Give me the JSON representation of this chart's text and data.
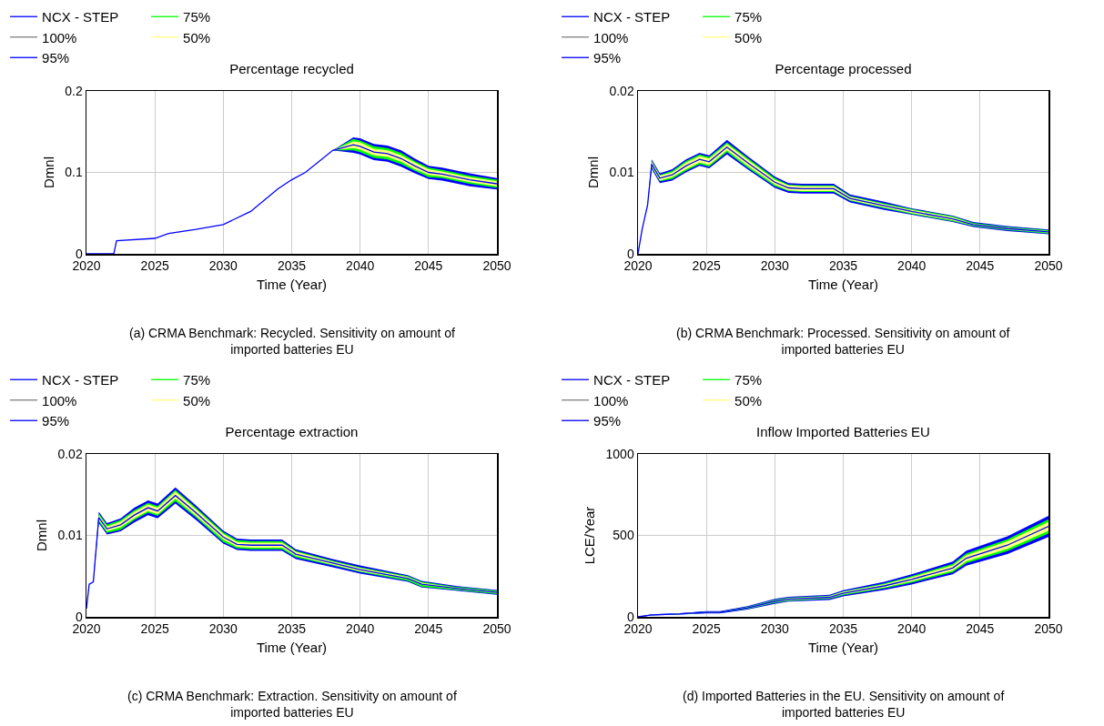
{
  "chart_data": [
    {
      "type": "line",
      "title": "Percentage recycled",
      "xlabel": "Time (Year)",
      "ylabel": "Dmnl",
      "annotations": [
        "(a) CRMA Benchmark: Recycled. Sensitivity on amount of imported batteries EU"
      ],
      "x": [
        2020,
        2022,
        2022.2,
        2025,
        2026,
        2028,
        2030,
        2032,
        2034,
        2035,
        2036,
        2038,
        2039.5,
        2040,
        2041,
        2042,
        2043,
        2044,
        2045,
        2046,
        2048,
        2050
      ],
      "xlim": [
        2020,
        2050
      ],
      "xticks": [
        2020,
        2025,
        2030,
        2035,
        2040,
        2045,
        2050
      ],
      "ylim": [
        0,
        0.2
      ],
      "yticks": [
        0,
        0.1,
        0.2
      ],
      "grid": true,
      "legend": "top left",
      "series": [
        {
          "name": "NCX - STEP",
          "color": "#0000ff",
          "values": [
            0,
            0,
            0.016,
            0.019,
            0.025,
            0.03,
            0.036,
            0.052,
            0.08,
            0.091,
            0.1,
            0.127,
            0.134,
            0.132,
            0.125,
            0.123,
            0.117,
            0.108,
            0.1,
            0.098,
            0.091,
            0.086
          ]
        },
        {
          "name": "50%",
          "color": "#ffff80",
          "x": [
            2038,
            2039.5,
            2040,
            2041,
            2042,
            2043,
            2044,
            2045,
            2046,
            2048,
            2050
          ],
          "values": [
            null,
            null,
            null,
            null,
            null,
            null,
            null,
            null,
            null,
            null,
            null
          ],
          "upper": [
            0.127,
            0.138,
            0.137,
            0.129,
            0.127,
            0.121,
            0.112,
            0.104,
            0.101,
            0.094,
            0.089
          ],
          "lower": [
            0.127,
            0.13,
            0.128,
            0.121,
            0.119,
            0.113,
            0.104,
            0.097,
            0.095,
            0.088,
            0.083
          ]
        },
        {
          "name": "75%",
          "color": "#00ff00",
          "x": [
            2038,
            2039.5,
            2040,
            2041,
            2042,
            2043,
            2044,
            2045,
            2046,
            2048,
            2050
          ],
          "values": [
            null,
            null,
            null,
            null,
            null,
            null,
            null,
            null,
            null,
            null,
            null
          ],
          "upper": [
            0.127,
            0.141,
            0.139,
            0.132,
            0.13,
            0.124,
            0.114,
            0.106,
            0.103,
            0.096,
            0.091
          ],
          "lower": [
            0.127,
            0.127,
            0.125,
            0.118,
            0.116,
            0.11,
            0.102,
            0.094,
            0.093,
            0.086,
            0.081
          ]
        },
        {
          "name": "95%",
          "color": "#0000ff",
          "x": [
            2038,
            2039.5,
            2040,
            2041,
            2042,
            2043,
            2044,
            2045,
            2046,
            2048,
            2050
          ],
          "values": [
            null,
            null,
            null,
            null,
            null,
            null,
            null,
            null,
            null,
            null,
            null
          ],
          "upper": [
            0.127,
            0.143,
            0.142,
            0.135,
            0.133,
            0.127,
            0.117,
            0.108,
            0.106,
            0.099,
            0.093
          ],
          "lower": [
            0.127,
            0.124,
            0.122,
            0.115,
            0.113,
            0.107,
            0.099,
            0.092,
            0.09,
            0.083,
            0.079
          ]
        },
        {
          "name": "100%",
          "color": "#808080",
          "values": [
            null,
            null,
            null,
            null,
            null,
            null,
            null,
            null,
            null,
            null,
            null,
            null,
            null,
            null,
            null,
            null,
            null,
            null,
            null,
            null,
            null,
            null
          ],
          "upper": [
            null,
            null,
            null,
            null,
            null,
            null,
            null,
            null,
            null,
            null,
            null,
            null,
            null,
            null,
            null,
            null,
            null,
            null,
            null,
            null,
            null,
            null
          ],
          "lower": [
            null,
            null,
            null,
            null,
            null,
            null,
            null,
            null,
            null,
            null,
            null,
            null,
            null,
            null,
            null,
            null,
            null,
            null,
            null,
            null,
            null,
            null
          ]
        }
      ]
    },
    {
      "type": "line",
      "title": "Percentage processed",
      "xlabel": "Time (Year)",
      "ylabel": "Dmnl",
      "annotations": [
        "(b) CRMA Benchmark: Processed. Sensitivity on amount of imported batteries EU"
      ],
      "x": [
        2020,
        2020.3,
        2020.7,
        2021,
        2021.6,
        2022.5,
        2023.5,
        2024.5,
        2025.2,
        2026.5,
        2028,
        2030,
        2031,
        2032,
        2034.3,
        2035.5,
        2038,
        2040,
        2043,
        2044.5,
        2047,
        2050
      ],
      "xlim": [
        2020,
        2050
      ],
      "xticks": [
        2020,
        2025,
        2030,
        2035,
        2040,
        2045,
        2050
      ],
      "ylim": [
        0,
        0.02
      ],
      "yticks": [
        0,
        0.01,
        0.02
      ],
      "grid": true,
      "legend": "top left",
      "series": [
        {
          "name": "NCX - STEP",
          "color": "#0000ff",
          "values": [
            0,
            0.003,
            0.006,
            0.011,
            0.0093,
            0.0097,
            0.0108,
            0.0116,
            0.0113,
            0.0131,
            0.0112,
            0.0088,
            0.0081,
            0.008,
            0.008,
            0.0068,
            0.0059,
            0.0052,
            0.0043,
            0.0036,
            0.0031,
            0.0027
          ]
        },
        {
          "name": "50%",
          "color": "#ffff80",
          "x": [
            2020.7,
            2021,
            2021.6,
            2022.5,
            2023.5,
            2024.5,
            2025.2,
            2026.5,
            2028,
            2030,
            2031,
            2032,
            2034.3,
            2035.5,
            2038,
            2040,
            2043,
            2044.5,
            2047,
            2050
          ],
          "values": [
            null,
            null,
            null,
            null,
            null,
            null,
            null,
            null,
            null,
            null,
            null,
            null,
            null,
            null,
            null,
            null,
            null,
            null,
            null,
            null
          ],
          "upper": [
            0.006,
            0.0113,
            0.0096,
            0.01,
            0.0112,
            0.012,
            0.0117,
            0.0135,
            0.0116,
            0.0091,
            0.0084,
            0.0083,
            0.0083,
            0.007,
            0.0061,
            0.0054,
            0.0045,
            0.0037,
            0.0032,
            0.0028
          ],
          "lower": [
            0.006,
            0.0107,
            0.009,
            0.0094,
            0.0104,
            0.0112,
            0.0109,
            0.0127,
            0.0108,
            0.0085,
            0.0078,
            0.0077,
            0.0077,
            0.0066,
            0.0057,
            0.005,
            0.0041,
            0.0035,
            0.003,
            0.0026
          ]
        },
        {
          "name": "75%",
          "color": "#00ff00",
          "x": [
            2020.7,
            2021,
            2021.6,
            2022.5,
            2023.5,
            2024.5,
            2025.2,
            2026.5,
            2028,
            2030,
            2031,
            2032,
            2034.3,
            2035.5,
            2038,
            2040,
            2043,
            2044.5,
            2047,
            2050
          ],
          "values": [
            null,
            null,
            null,
            null,
            null,
            null,
            null,
            null,
            null,
            null,
            null,
            null,
            null,
            null,
            null,
            null,
            null,
            null,
            null,
            null
          ],
          "upper": [
            0.006,
            0.0114,
            0.0097,
            0.0102,
            0.0114,
            0.0122,
            0.0119,
            0.0137,
            0.0118,
            0.0093,
            0.0085,
            0.0084,
            0.0084,
            0.0071,
            0.0062,
            0.0055,
            0.0046,
            0.0038,
            0.0033,
            0.0029
          ],
          "lower": [
            0.006,
            0.0106,
            0.0089,
            0.0092,
            0.0102,
            0.011,
            0.0107,
            0.0125,
            0.0106,
            0.0083,
            0.0077,
            0.0076,
            0.0076,
            0.0065,
            0.0056,
            0.0049,
            0.004,
            0.0034,
            0.0029,
            0.0025
          ]
        },
        {
          "name": "95%",
          "color": "#0000ff",
          "x": [
            2020.7,
            2021,
            2021.6,
            2022.5,
            2023.5,
            2024.5,
            2025.2,
            2026.5,
            2028,
            2030,
            2031,
            2032,
            2034.3,
            2035.5,
            2038,
            2040,
            2043,
            2044.5,
            2047,
            2050
          ],
          "values": [
            null,
            null,
            null,
            null,
            null,
            null,
            null,
            null,
            null,
            null,
            null,
            null,
            null,
            null,
            null,
            null,
            null,
            null,
            null,
            null
          ],
          "upper": [
            0.006,
            0.0116,
            0.0099,
            0.0104,
            0.0116,
            0.0124,
            0.0121,
            0.014,
            0.012,
            0.0095,
            0.0087,
            0.0086,
            0.0086,
            0.0073,
            0.0064,
            0.0056,
            0.0047,
            0.0039,
            0.0034,
            0.003
          ],
          "lower": [
            0.006,
            0.0104,
            0.0087,
            0.009,
            0.01,
            0.0108,
            0.0105,
            0.0122,
            0.0104,
            0.0081,
            0.0075,
            0.0074,
            0.0074,
            0.0063,
            0.0054,
            0.0048,
            0.0039,
            0.0033,
            0.0028,
            0.0024
          ]
        },
        {
          "name": "100%",
          "color": "#808080",
          "values": [
            null,
            null,
            null,
            null,
            null,
            null,
            null,
            null,
            null,
            null,
            null,
            null,
            null,
            null,
            null,
            null,
            null,
            null,
            null,
            null,
            null,
            null
          ],
          "upper": [
            null,
            null,
            null,
            null,
            null,
            null,
            null,
            null,
            null,
            null,
            null,
            null,
            null,
            null,
            null,
            null,
            null,
            null,
            null,
            null,
            null,
            null
          ],
          "lower": [
            null,
            null,
            null,
            null,
            null,
            null,
            null,
            null,
            null,
            null,
            null,
            null,
            null,
            null,
            null,
            null,
            null,
            null,
            null,
            null,
            null,
            null
          ]
        }
      ]
    },
    {
      "type": "line",
      "title": "Percentage extraction",
      "xlabel": "Time (Year)",
      "ylabel": "Dmnl",
      "annotations": [
        "(c) CRMA Benchmark: Extraction. Sensitivity on amount of imported batteries EU"
      ],
      "x": [
        2020,
        2020.2,
        2020.5,
        2020.9,
        2021.5,
        2022.5,
        2023.5,
        2024.5,
        2025.2,
        2026.5,
        2028,
        2030,
        2031,
        2032,
        2034.3,
        2035.3,
        2038,
        2040,
        2043.5,
        2044.5,
        2047,
        2050
      ],
      "xlim": [
        2020,
        2050
      ],
      "xticks": [
        2020,
        2025,
        2030,
        2035,
        2040,
        2045,
        2050
      ],
      "ylim": [
        0,
        0.02
      ],
      "yticks": [
        0,
        0.01,
        0.02
      ],
      "grid": true,
      "legend": "top left",
      "series": [
        {
          "name": "NCX - STEP",
          "color": "#0000ff",
          "values": [
            0.001,
            0.004,
            0.0043,
            0.0122,
            0.0108,
            0.0113,
            0.0125,
            0.0134,
            0.013,
            0.0149,
            0.0128,
            0.0098,
            0.0089,
            0.0088,
            0.0088,
            0.0077,
            0.0066,
            0.0058,
            0.0047,
            0.004,
            0.0035,
            0.003
          ]
        },
        {
          "name": "50%",
          "color": "#ffff80",
          "x": [
            2020.5,
            2020.9,
            2021.5,
            2022.5,
            2023.5,
            2024.5,
            2025.2,
            2026.5,
            2028,
            2030,
            2031,
            2032,
            2034.3,
            2035.3,
            2038,
            2040,
            2043.5,
            2044.5,
            2047,
            2050
          ],
          "values": [
            null,
            null,
            null,
            null,
            null,
            null,
            null,
            null,
            null,
            null,
            null,
            null,
            null,
            null,
            null,
            null,
            null,
            null,
            null,
            null
          ],
          "upper": [
            0.0043,
            0.0125,
            0.0111,
            0.0117,
            0.0129,
            0.0138,
            0.0134,
            0.0154,
            0.0132,
            0.0102,
            0.0092,
            0.0091,
            0.0091,
            0.008,
            0.0068,
            0.006,
            0.0049,
            0.0042,
            0.0036,
            0.0031
          ],
          "lower": [
            0.0043,
            0.0119,
            0.0105,
            0.011,
            0.0121,
            0.013,
            0.0126,
            0.0145,
            0.0124,
            0.0095,
            0.0086,
            0.0085,
            0.0085,
            0.0075,
            0.0064,
            0.0056,
            0.0046,
            0.0039,
            0.0034,
            0.0029
          ]
        },
        {
          "name": "75%",
          "color": "#00ff00",
          "x": [
            2020.5,
            2020.9,
            2021.5,
            2022.5,
            2023.5,
            2024.5,
            2025.2,
            2026.5,
            2028,
            2030,
            2031,
            2032,
            2034.3,
            2035.3,
            2038,
            2040,
            2043.5,
            2044.5,
            2047,
            2050
          ],
          "values": [
            null,
            null,
            null,
            null,
            null,
            null,
            null,
            null,
            null,
            null,
            null,
            null,
            null,
            null,
            null,
            null,
            null,
            null,
            null,
            null
          ],
          "upper": [
            0.0043,
            0.0127,
            0.0113,
            0.0119,
            0.0131,
            0.014,
            0.0136,
            0.0156,
            0.0134,
            0.0104,
            0.0094,
            0.0093,
            0.0093,
            0.0081,
            0.0069,
            0.0061,
            0.005,
            0.0043,
            0.0037,
            0.0032
          ],
          "lower": [
            0.0043,
            0.0117,
            0.0103,
            0.0107,
            0.0119,
            0.0128,
            0.0124,
            0.0142,
            0.0122,
            0.0092,
            0.0084,
            0.0083,
            0.0083,
            0.0073,
            0.0063,
            0.0055,
            0.0044,
            0.0037,
            0.0033,
            0.0028
          ]
        },
        {
          "name": "95%",
          "color": "#0000ff",
          "x": [
            2020.5,
            2020.9,
            2021.5,
            2022.5,
            2023.5,
            2024.5,
            2025.2,
            2026.5,
            2028,
            2030,
            2031,
            2032,
            2034.3,
            2035.3,
            2038,
            2040,
            2043.5,
            2044.5,
            2047,
            2050
          ],
          "values": [
            null,
            null,
            null,
            null,
            null,
            null,
            null,
            null,
            null,
            null,
            null,
            null,
            null,
            null,
            null,
            null,
            null,
            null,
            null,
            null
          ],
          "upper": [
            0.0043,
            0.0129,
            0.0115,
            0.0121,
            0.0134,
            0.0143,
            0.0139,
            0.0159,
            0.0137,
            0.0106,
            0.0096,
            0.0095,
            0.0095,
            0.0083,
            0.0071,
            0.0063,
            0.0051,
            0.0044,
            0.0038,
            0.0033
          ],
          "lower": [
            0.0043,
            0.0115,
            0.0101,
            0.0105,
            0.0116,
            0.0125,
            0.0121,
            0.0139,
            0.0119,
            0.009,
            0.0082,
            0.0081,
            0.0081,
            0.0071,
            0.0061,
            0.0053,
            0.0043,
            0.0036,
            0.0032,
            0.0027
          ]
        },
        {
          "name": "100%",
          "color": "#808080",
          "values": [
            null,
            null,
            null,
            null,
            null,
            null,
            null,
            null,
            null,
            null,
            null,
            null,
            null,
            null,
            null,
            null,
            null,
            null,
            null,
            null,
            null,
            null
          ],
          "upper": [
            null,
            null,
            null,
            null,
            null,
            null,
            null,
            null,
            null,
            null,
            null,
            null,
            null,
            null,
            null,
            null,
            null,
            null,
            null,
            null,
            null,
            null
          ],
          "lower": [
            null,
            null,
            null,
            null,
            null,
            null,
            null,
            null,
            null,
            null,
            null,
            null,
            null,
            null,
            null,
            null,
            null,
            null,
            null,
            null,
            null,
            null
          ]
        }
      ]
    },
    {
      "type": "line",
      "title": "Inflow Imported Batteries EU",
      "xlabel": "Time (Year)",
      "ylabel": "LCE/Year",
      "annotations": [
        "(d) Imported Batteries in the EU. Sensitivity on amount of imported batteries EU"
      ],
      "x": [
        2020,
        2021,
        2023,
        2025,
        2026,
        2028,
        2030,
        2031,
        2034,
        2035,
        2038,
        2040,
        2043,
        2044,
        2047,
        2050
      ],
      "xlim": [
        2020,
        2050
      ],
      "xticks": [
        2020,
        2025,
        2030,
        2035,
        2040,
        2045,
        2050
      ],
      "ylim": [
        0,
        1000
      ],
      "yticks": [
        0,
        500,
        1000
      ],
      "grid": true,
      "legend": "top left",
      "series": [
        {
          "name": "NCX - STEP",
          "color": "#0000ff",
          "values": [
            0,
            12,
            18,
            28,
            28,
            55,
            95,
            108,
            120,
            145,
            190,
            230,
            300,
            360,
            440,
            555
          ]
        },
        {
          "name": "50%",
          "color": "#ffff80",
          "values": [
            null,
            null,
            null,
            null,
            null,
            null,
            null,
            null,
            null,
            null,
            null,
            null,
            null,
            null,
            null,
            null
          ],
          "upper": [
            0,
            13,
            20,
            31,
            31,
            59,
            101,
            114,
            127,
            153,
            200,
            243,
            316,
            379,
            463,
            583
          ],
          "lower": [
            0,
            11,
            17,
            26,
            26,
            51,
            89,
            102,
            114,
            138,
            180,
            218,
            284,
            341,
            418,
            528
          ]
        },
        {
          "name": "75%",
          "color": "#00ff00",
          "values": [
            null,
            null,
            null,
            null,
            null,
            null,
            null,
            null,
            null,
            null,
            null,
            null,
            null,
            null,
            null,
            null
          ],
          "upper": [
            0,
            14,
            20,
            32,
            32,
            61,
            105,
            118,
            130,
            157,
            206,
            250,
            326,
            390,
            476,
            599
          ],
          "lower": [
            0,
            10,
            16,
            24,
            24,
            49,
            85,
            98,
            110,
            133,
            174,
            210,
            274,
            330,
            404,
            511
          ]
        },
        {
          "name": "95%",
          "color": "#0000ff",
          "values": [
            null,
            null,
            null,
            null,
            null,
            null,
            null,
            null,
            null,
            null,
            null,
            null,
            null,
            null,
            null,
            null
          ],
          "upper": [
            0,
            15,
            22,
            35,
            35,
            66,
            110,
            123,
            136,
            164,
            215,
            261,
            339,
            406,
            494,
            620
          ],
          "lower": [
            0,
            9,
            14,
            21,
            21,
            44,
            80,
            93,
            104,
            126,
            165,
            199,
            261,
            314,
            386,
            490
          ]
        },
        {
          "name": "100%",
          "color": "#808080",
          "values": [
            null,
            null,
            null,
            null,
            null,
            null,
            null,
            null,
            null,
            null,
            null,
            null,
            null,
            null,
            null,
            null
          ],
          "upper": [
            null,
            null,
            null,
            null,
            null,
            null,
            null,
            null,
            null,
            null,
            null,
            null,
            null,
            null,
            null,
            null
          ],
          "lower": [
            null,
            null,
            null,
            null,
            null,
            null,
            null,
            null,
            null,
            null,
            null,
            null,
            null,
            null,
            null,
            null
          ]
        }
      ]
    }
  ]
}
